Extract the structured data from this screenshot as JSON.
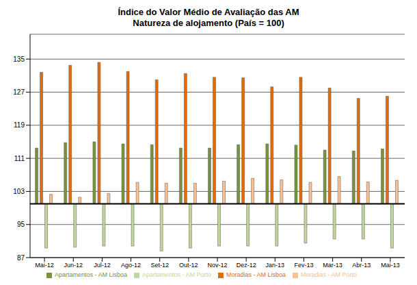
{
  "chart_data": {
    "type": "bar",
    "title": "Índice do Valor Médio de Avaliação das AM",
    "subtitle": "Natureza de alojamento (País = 100)",
    "baseline": 100,
    "categories": [
      "Mai-12",
      "Jun-12",
      "Jul-12",
      "Ago-12",
      "Set-12",
      "Out-12",
      "Nov-12",
      "Dez-12",
      "Jan-13",
      "Fev-13",
      "Mar-13",
      "Abr-13",
      "Mai-13"
    ],
    "series": [
      {
        "name": "Apartamentos - AM Lisboa",
        "color": "#77933c",
        "values": [
          113.5,
          114.8,
          115,
          114.5,
          114.3,
          113.5,
          113.5,
          114.3,
          114.5,
          114.2,
          113,
          112.8,
          113.3
        ]
      },
      {
        "name": "Moradias - AM Lisboa",
        "color": "#e36c0a",
        "values": [
          131.8,
          133.5,
          134.2,
          132,
          130,
          131.5,
          130.6,
          130.5,
          128.3,
          130.6,
          128,
          125.5,
          126
        ]
      },
      {
        "name": "Apartamentos - AM Porto",
        "color": "#c3d69b",
        "values": [
          89.3,
          89.5,
          89.8,
          89.8,
          88.6,
          89.3,
          89.8,
          89.8,
          89.8,
          90.5,
          91.5,
          91.5,
          89.3
        ]
      },
      {
        "name": "Moradias - AM Porto",
        "color": "#fac090",
        "values": [
          102.3,
          101.6,
          102.5,
          105.2,
          105,
          105,
          105.5,
          106.2,
          105.8,
          105.2,
          106.6,
          105.3,
          105.7
        ]
      }
    ],
    "ylim": [
      87,
      141
    ],
    "yticks": [
      87,
      95,
      103,
      111,
      119,
      127,
      135
    ],
    "grid": true,
    "legend": "bottom"
  }
}
